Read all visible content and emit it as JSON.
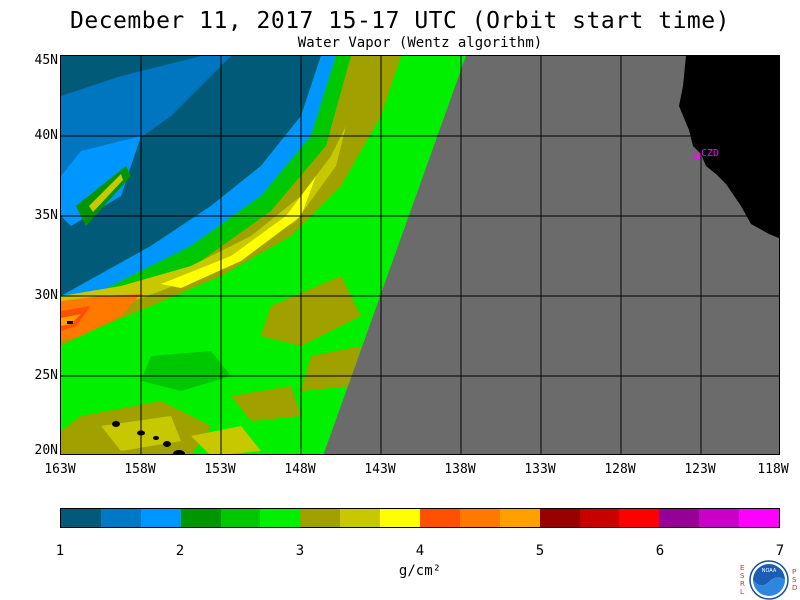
{
  "title": "December 11, 2017  15-17 UTC  (Orbit start time)",
  "subtitle": "Water Vapor (Wentz algorithm)",
  "map": {
    "lat_ticks": [
      "45N",
      "40N",
      "35N",
      "30N",
      "25N",
      "20N"
    ],
    "lon_ticks": [
      "163W",
      "158W",
      "153W",
      "148W",
      "143W",
      "138W",
      "133W",
      "128W",
      "123W",
      "118W"
    ],
    "station_label": "CZD",
    "colors": {
      "no_data": "#6b6b6b",
      "land": "#000000",
      "station": "#ff00ff"
    }
  },
  "colorbar": {
    "labels": [
      "1",
      "2",
      "3",
      "4",
      "5",
      "6",
      "7"
    ],
    "unit": "g/cm²",
    "colors": [
      "#005a78",
      "#0078c8",
      "#0096ff",
      "#009600",
      "#00c800",
      "#00f000",
      "#a0a000",
      "#c8c800",
      "#ffff00",
      "#ff5000",
      "#ff7800",
      "#ffa000",
      "#960000",
      "#c80000",
      "#ff0000",
      "#960096",
      "#c800c8",
      "#ff00ff"
    ]
  },
  "logo": {
    "left_letters": [
      "E",
      "S",
      "R",
      "L"
    ],
    "right_letters": [
      "P",
      "S",
      "D"
    ],
    "badge_text": "NOAA"
  }
}
